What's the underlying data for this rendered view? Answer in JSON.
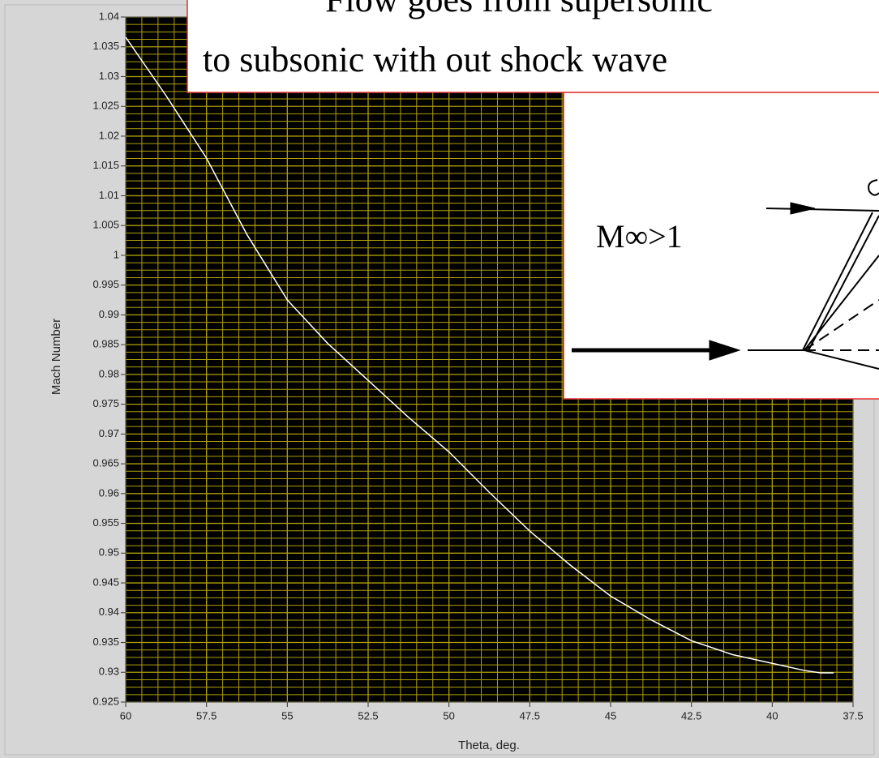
{
  "chart_data": {
    "type": "line",
    "y_label": "Mach Number",
    "x_label": "Theta, deg.",
    "annotations": [
      "Flow goes from supersonic",
      "to subsonic with out shock wave",
      "M∞>1"
    ],
    "x": [
      60,
      58.75,
      57.5,
      56.25,
      55,
      53.75,
      52.5,
      51.25,
      50,
      48.75,
      47.5,
      46.25,
      45,
      43.75,
      42.5,
      41.25,
      40,
      39,
      38.5,
      38.1
    ],
    "series": [
      {
        "name": "Mach Number",
        "color": "#ffffff",
        "values": [
          1.0366,
          1.0268,
          1.0163,
          1.0035,
          0.9925,
          0.9852,
          0.979,
          0.9728,
          0.967,
          0.9602,
          0.9537,
          0.948,
          0.9428,
          0.9388,
          0.9353,
          0.933,
          0.9315,
          0.9303,
          0.9299,
          0.9299
        ]
      }
    ],
    "xlim": [
      60,
      37.5
    ],
    "xticks": [
      60,
      57.5,
      55,
      52.5,
      50,
      47.5,
      45,
      42.5,
      40,
      37.5
    ],
    "ylim": [
      0.925,
      1.04
    ],
    "yticks": [
      0.925,
      0.93,
      0.935,
      0.94,
      0.945,
      0.95,
      0.955,
      0.96,
      0.965,
      0.97,
      0.975,
      0.98,
      0.985,
      0.99,
      0.995,
      1,
      1.005,
      1.01,
      1.015,
      1.02,
      1.025,
      1.03,
      1.035,
      1.04
    ],
    "grid": true,
    "grid_color": "#b0a000",
    "plot_background": "#000000"
  }
}
